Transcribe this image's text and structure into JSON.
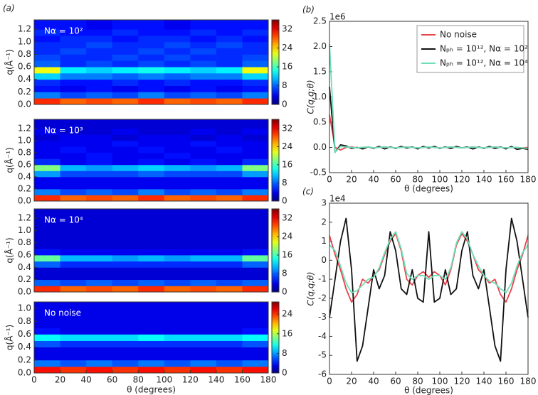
{
  "chart_data": [
    {
      "type": "heatmap",
      "panel": "(a)",
      "title": "Nα = 10²",
      "ylabel": "q(Å⁻¹)",
      "xlim": [
        0,
        180
      ],
      "ylim": [
        0,
        1.35
      ],
      "yticks": [
        {
          "value": 0,
          "label": "0.0"
        },
        0.2,
        0.4,
        0.6,
        0.8,
        {
          "value": 1,
          "label": "1.0"
        },
        1.2
      ],
      "x_edges": [
        0,
        20,
        40,
        60,
        80,
        100,
        120,
        140,
        160,
        180
      ],
      "y_edges": [
        0,
        0.1,
        0.2,
        0.3,
        0.4,
        0.5,
        0.6,
        0.7,
        0.8,
        0.9,
        1,
        1.1,
        1.2,
        1.35
      ],
      "z": [
        [
          30,
          28,
          29,
          28,
          30,
          28,
          29,
          28,
          30
        ],
        [
          9,
          7,
          8,
          7,
          9,
          7,
          8,
          7,
          9
        ],
        [
          5,
          4,
          5,
          4,
          5,
          4,
          5,
          4,
          5
        ],
        [
          6,
          5,
          5,
          6,
          5,
          6,
          5,
          5,
          6
        ],
        [
          12,
          9,
          9,
          8,
          9,
          8,
          9,
          9,
          12
        ],
        [
          22,
          13,
          12,
          13,
          14,
          13,
          12,
          13,
          22
        ],
        [
          8,
          6,
          7,
          6,
          7,
          6,
          7,
          6,
          8
        ],
        [
          7,
          6,
          6,
          7,
          6,
          7,
          6,
          6,
          7
        ],
        [
          6,
          7,
          6,
          6,
          7,
          6,
          7,
          6,
          6
        ],
        [
          6,
          6,
          7,
          6,
          6,
          7,
          6,
          7,
          6
        ],
        [
          5,
          6,
          6,
          5,
          6,
          6,
          5,
          6,
          5
        ],
        [
          6,
          5,
          5,
          6,
          5,
          5,
          6,
          5,
          6
        ],
        [
          5,
          5,
          4,
          5,
          5,
          4,
          5,
          5,
          5
        ]
      ],
      "colorbar": {
        "lim": [
          0,
          36
        ],
        "ticks": [
          0,
          8,
          16,
          24,
          32
        ]
      }
    },
    {
      "type": "heatmap",
      "title": "Nα = 10³",
      "ylabel": "q(Å⁻¹)",
      "xlim": [
        0,
        180
      ],
      "ylim": [
        0,
        1.35
      ],
      "yticks": [
        {
          "value": 0,
          "label": "0.0"
        },
        0.2,
        0.4,
        0.6,
        0.8,
        {
          "value": 1,
          "label": "1.0"
        },
        1.2
      ],
      "x_edges": [
        0,
        20,
        40,
        60,
        80,
        100,
        120,
        140,
        160,
        180
      ],
      "y_edges": [
        0,
        0.1,
        0.2,
        0.3,
        0.4,
        0.5,
        0.6,
        0.7,
        0.8,
        0.9,
        1,
        1.1,
        1.2,
        1.35
      ],
      "z": [
        [
          30,
          28,
          29,
          28,
          30,
          28,
          29,
          28,
          30
        ],
        [
          9,
          7,
          8,
          7,
          9,
          7,
          8,
          7,
          9
        ],
        [
          4,
          4,
          4,
          4,
          4,
          4,
          4,
          4,
          4
        ],
        [
          4,
          4,
          4,
          4,
          4,
          4,
          4,
          4,
          4
        ],
        [
          10,
          7,
          7,
          7,
          8,
          7,
          7,
          7,
          10
        ],
        [
          18,
          11,
          10,
          11,
          12,
          11,
          10,
          11,
          18
        ],
        [
          6,
          4,
          5,
          4,
          5,
          4,
          5,
          4,
          6
        ],
        [
          4,
          4,
          5,
          4,
          4,
          5,
          4,
          4,
          4
        ],
        [
          4,
          5,
          4,
          4,
          5,
          4,
          4,
          5,
          4
        ],
        [
          4,
          4,
          4,
          5,
          4,
          4,
          5,
          4,
          4
        ],
        [
          3,
          4,
          4,
          3,
          4,
          4,
          3,
          4,
          3
        ],
        [
          4,
          3,
          3,
          4,
          3,
          3,
          4,
          3,
          4
        ],
        [
          3,
          3,
          3,
          3,
          3,
          3,
          3,
          3,
          3
        ]
      ],
      "colorbar": {
        "lim": [
          0,
          36
        ],
        "ticks": [
          0,
          8,
          16,
          24,
          32
        ]
      }
    },
    {
      "type": "heatmap",
      "title": "Nα = 10⁴",
      "ylabel": "q(Å⁻¹)",
      "xlim": [
        0,
        180
      ],
      "ylim": [
        0,
        1.35
      ],
      "yticks": [
        {
          "value": 0,
          "label": "0.0"
        },
        0.2,
        0.4,
        0.6,
        0.8,
        {
          "value": 1,
          "label": "1.0"
        },
        1.2
      ],
      "x_edges": [
        0,
        20,
        40,
        60,
        80,
        100,
        120,
        140,
        160,
        180
      ],
      "y_edges": [
        0,
        0.1,
        0.2,
        0.3,
        0.4,
        0.5,
        0.6,
        0.7,
        0.8,
        0.9,
        1,
        1.1,
        1.2,
        1.35
      ],
      "z": [
        [
          30,
          28,
          29,
          28,
          30,
          28,
          29,
          28,
          30
        ],
        [
          8,
          7,
          8,
          7,
          8,
          7,
          8,
          7,
          8
        ],
        [
          3,
          3,
          3,
          3,
          3,
          3,
          3,
          3,
          3
        ],
        [
          3,
          3,
          3,
          3,
          3,
          3,
          3,
          3,
          3
        ],
        [
          8,
          6,
          6,
          6,
          6,
          6,
          6,
          6,
          8
        ],
        [
          17,
          11,
          11,
          10,
          11,
          10,
          11,
          11,
          17
        ],
        [
          5,
          4,
          4,
          4,
          4,
          4,
          4,
          4,
          5
        ],
        [
          3,
          3,
          3,
          3,
          3,
          3,
          3,
          3,
          3
        ],
        [
          3,
          3,
          3,
          3,
          3,
          3,
          3,
          3,
          3
        ],
        [
          3,
          3,
          3,
          3,
          3,
          3,
          3,
          3,
          3
        ],
        [
          3,
          3,
          3,
          3,
          3,
          3,
          3,
          3,
          3
        ],
        [
          3,
          3,
          3,
          3,
          3,
          3,
          3,
          3,
          3
        ],
        [
          3,
          3,
          3,
          3,
          3,
          3,
          3,
          3,
          3
        ]
      ],
      "colorbar": {
        "lim": [
          0,
          36
        ],
        "ticks": [
          0,
          8,
          16,
          24,
          32
        ]
      }
    },
    {
      "type": "heatmap",
      "title": "No noise",
      "ylabel": "q(Å⁻¹)",
      "xlabel": "θ (degrees)",
      "xlim": [
        0,
        180
      ],
      "ylim": [
        0,
        1.1
      ],
      "xticks": [
        0,
        20,
        40,
        60,
        80,
        100,
        120,
        140,
        160,
        180
      ],
      "yticks": [
        {
          "value": 0,
          "label": "0.0"
        },
        0.2,
        0.4,
        0.6,
        0.8,
        {
          "value": 1,
          "label": "1.0"
        }
      ],
      "x_edges": [
        0,
        20,
        40,
        60,
        80,
        100,
        120,
        140,
        160,
        180
      ],
      "y_edges": [
        0,
        0.1,
        0.2,
        0.3,
        0.4,
        0.5,
        0.6,
        0.7,
        0.8,
        0.9,
        1,
        1.1
      ],
      "z": [
        [
          25,
          24,
          25,
          24,
          25,
          24,
          25,
          24,
          25
        ],
        [
          7,
          6,
          7,
          6,
          7,
          6,
          7,
          6,
          7
        ],
        [
          3,
          3,
          3,
          3,
          3,
          3,
          3,
          3,
          3
        ],
        [
          3,
          3,
          3,
          3,
          3,
          3,
          3,
          3,
          3
        ],
        [
          6,
          5,
          5,
          5,
          5,
          5,
          5,
          5,
          6
        ],
        [
          11,
          10,
          10,
          10,
          11,
          10,
          10,
          10,
          11
        ],
        [
          4,
          3,
          3,
          3,
          3,
          3,
          3,
          3,
          4
        ],
        [
          3,
          3,
          3,
          3,
          3,
          3,
          3,
          3,
          3
        ],
        [
          3,
          3,
          3,
          3,
          3,
          3,
          3,
          3,
          3
        ],
        [
          3,
          3,
          3,
          3,
          3,
          3,
          3,
          3,
          3
        ],
        [
          3,
          3,
          3,
          3,
          3,
          3,
          3,
          3,
          3
        ]
      ],
      "colorbar": {
        "lim": [
          0,
          29
        ],
        "ticks": [
          0,
          8,
          16,
          24
        ]
      }
    },
    {
      "type": "line",
      "panel": "(b)",
      "ylabel": "C(q,q;θ)",
      "xlabel": "θ (degrees)",
      "offset": "1e6",
      "xlim": [
        0,
        180
      ],
      "ylim": [
        -0.5,
        2.5
      ],
      "xticks": [
        0,
        20,
        40,
        60,
        80,
        100,
        120,
        140,
        160,
        180
      ],
      "yticks": [
        -0.5,
        {
          "value": 0,
          "label": "0.0"
        },
        0.5,
        {
          "value": 1,
          "label": "1.0"
        },
        1.5,
        {
          "value": 2,
          "label": "2.0"
        },
        2.5
      ],
      "legend": "upper right",
      "x": [
        0,
        5,
        10,
        15,
        20,
        25,
        30,
        35,
        40,
        45,
        50,
        55,
        60,
        65,
        70,
        75,
        80,
        85,
        90,
        95,
        100,
        105,
        110,
        115,
        120,
        125,
        130,
        135,
        140,
        145,
        150,
        155,
        160,
        165,
        170,
        175,
        180
      ],
      "series": [
        {
          "name": "No noise",
          "color": "#e8424a",
          "values": [
            0.65,
            0,
            -0.05,
            0,
            0.01,
            -0.01,
            0,
            0.01,
            -0.01,
            0,
            0.01,
            0,
            -0.01,
            0,
            0.01,
            0,
            -0.01,
            0,
            0.01,
            0,
            -0.01,
            0,
            0.01,
            0,
            -0.01,
            0,
            0.01,
            0,
            -0.01,
            0,
            0.01,
            0,
            -0.01,
            0,
            0,
            -0.01,
            0
          ]
        },
        {
          "name": "Nₚₕ = 10¹², Nα = 10²",
          "color": "#111111",
          "values": [
            1.2,
            -0.1,
            0.05,
            0.03,
            -0.02,
            0,
            -0.03,
            0.01,
            -0.02,
            0.02,
            -0.03,
            0.01,
            -0.02,
            0.02,
            -0.01,
            0.01,
            -0.03,
            0.02,
            -0.01,
            0.02,
            -0.02,
            0.01,
            -0.02,
            0.02,
            -0.01,
            0.01,
            -0.03,
            0.01,
            -0.02,
            0.02,
            -0.02,
            0.01,
            -0.03,
            0.02,
            -0.04,
            -0.02,
            -0.04
          ]
        },
        {
          "name": "Nₚₕ = 10¹², Nα = 10⁴",
          "color": "#6ee0b8",
          "values": [
            2.05,
            -0.1,
            0.02,
            0.01,
            0,
            -0.01,
            0,
            0.01,
            -0.01,
            0,
            0.01,
            0,
            -0.01,
            0,
            0.01,
            0,
            -0.01,
            0,
            0.01,
            0,
            -0.01,
            0,
            0.01,
            0,
            -0.01,
            0,
            0.01,
            0,
            -0.01,
            0,
            0.01,
            0,
            -0.01,
            0,
            0,
            -0.01,
            -0.02
          ]
        }
      ]
    },
    {
      "type": "line",
      "panel": "(c)",
      "ylabel": "C(q,q;θ)",
      "xlabel": "θ (degrees)",
      "offset": "1e4",
      "xlim": [
        0,
        180
      ],
      "ylim": [
        -6,
        3
      ],
      "xticks": [
        0,
        20,
        40,
        60,
        80,
        100,
        120,
        140,
        160,
        180
      ],
      "yticks": [
        -6,
        -5,
        -4,
        -3,
        -2,
        -1,
        0,
        1,
        2,
        3
      ],
      "x": [
        0,
        5,
        10,
        15,
        20,
        25,
        30,
        35,
        40,
        45,
        50,
        55,
        60,
        65,
        70,
        75,
        80,
        85,
        90,
        95,
        100,
        105,
        110,
        115,
        120,
        125,
        130,
        135,
        140,
        145,
        150,
        155,
        160,
        165,
        170,
        175,
        180
      ],
      "series": [
        {
          "name": "No noise",
          "color": "#e8424a",
          "values": [
            1.3,
            0.3,
            -0.5,
            -1.5,
            -2.2,
            -1.8,
            -1,
            -1.2,
            -0.8,
            -0.5,
            0.3,
            1,
            1.4,
            0.5,
            -1,
            -1.3,
            -0.8,
            -0.6,
            -0.9,
            -0.6,
            -0.8,
            -1.3,
            -0.5,
            0.8,
            1.4,
            1,
            0.3,
            -0.5,
            -0.8,
            -1.2,
            -1,
            -1.8,
            -2.2,
            -1.5,
            -0.5,
            0.3,
            1.3
          ]
        },
        {
          "name": "Nₚₕ = 10¹², Nα = 10²",
          "color": "#111111",
          "values": [
            -3,
            -1,
            1,
            2.2,
            -0.5,
            -5.3,
            -4.5,
            -2.5,
            -0.5,
            -1.5,
            -0.8,
            1.5,
            0.5,
            -1.5,
            -1.8,
            -0.5,
            -2,
            -2.2,
            1.5,
            -2.2,
            -2,
            -0.5,
            -1.8,
            -1.5,
            0.5,
            1.5,
            -0.8,
            -1.5,
            -0.5,
            -2.5,
            -4.5,
            -5.3,
            -0.5,
            2.2,
            1,
            -1,
            -3
          ]
        },
        {
          "name": "Nₚₕ = 10¹², Nα = 10⁴",
          "color": "#6ee0b8",
          "values": [
            0.8,
            0.5,
            -0.3,
            -1.2,
            -1.7,
            -1.6,
            -1.3,
            -1,
            -0.9,
            -0.4,
            0.4,
            1.1,
            1.5,
            0.6,
            -0.7,
            -1,
            -0.8,
            -0.8,
            -1,
            -0.8,
            -0.8,
            -1,
            -0.4,
            0.9,
            1.5,
            1.1,
            0.3,
            -0.3,
            -0.8,
            -1.1,
            -1.2,
            -1.5,
            -1.7,
            -1.2,
            -0.3,
            0.4,
            0.8
          ]
        }
      ]
    }
  ]
}
